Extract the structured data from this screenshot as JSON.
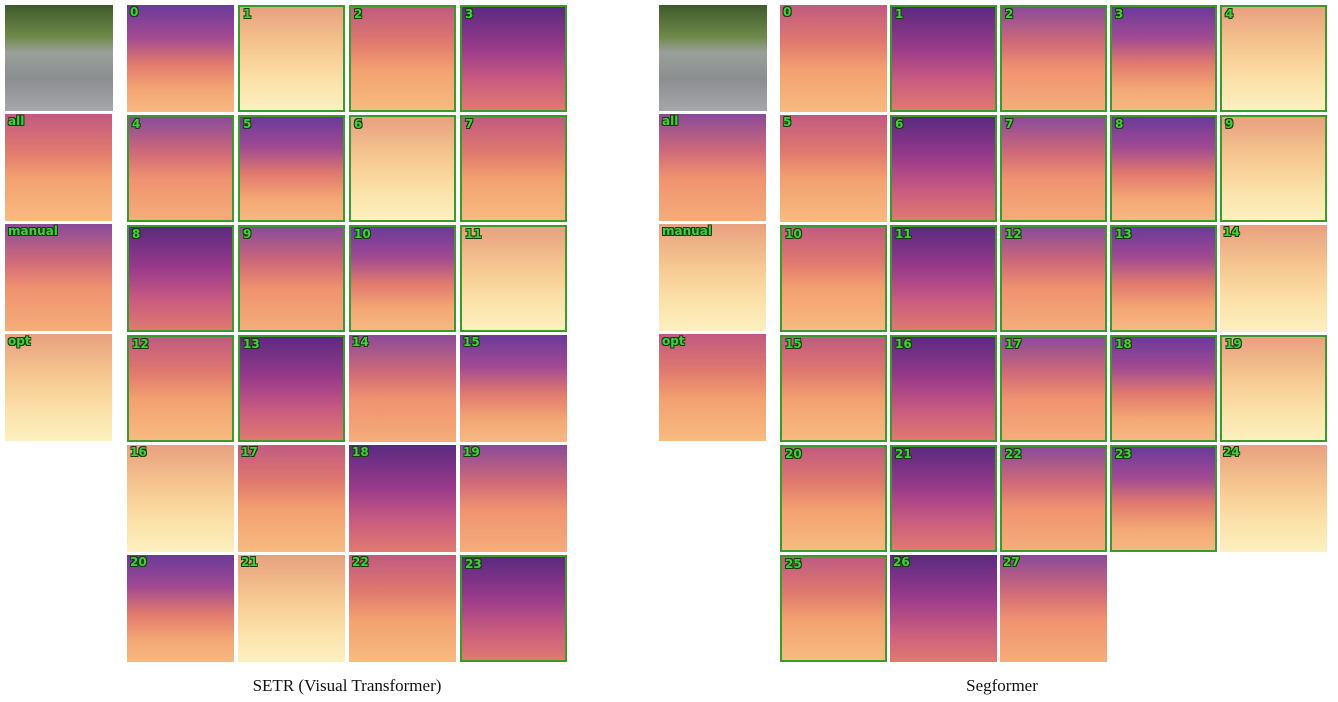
{
  "panels": [
    {
      "caption": "SETR (Visual Transformer)",
      "side_labels": [
        "all",
        "manual",
        "opt"
      ],
      "layers": [
        {
          "label": "0",
          "selected": false
        },
        {
          "label": "1",
          "selected": true
        },
        {
          "label": "2",
          "selected": true
        },
        {
          "label": "3",
          "selected": true
        },
        {
          "label": "4",
          "selected": true
        },
        {
          "label": "5",
          "selected": true
        },
        {
          "label": "6",
          "selected": true
        },
        {
          "label": "7",
          "selected": true
        },
        {
          "label": "8",
          "selected": true
        },
        {
          "label": "9",
          "selected": true
        },
        {
          "label": "10",
          "selected": true
        },
        {
          "label": "11",
          "selected": true
        },
        {
          "label": "12",
          "selected": true
        },
        {
          "label": "13",
          "selected": true
        },
        {
          "label": "14",
          "selected": false
        },
        {
          "label": "15",
          "selected": false
        },
        {
          "label": "16",
          "selected": false
        },
        {
          "label": "17",
          "selected": false
        },
        {
          "label": "18",
          "selected": false
        },
        {
          "label": "19",
          "selected": false
        },
        {
          "label": "20",
          "selected": false
        },
        {
          "label": "21",
          "selected": false
        },
        {
          "label": "22",
          "selected": false
        },
        {
          "label": "23",
          "selected": true
        }
      ]
    },
    {
      "caption": "Segformer",
      "side_labels": [
        "all",
        "manual",
        "opt"
      ],
      "layers": [
        {
          "label": "0",
          "selected": false
        },
        {
          "label": "1",
          "selected": true
        },
        {
          "label": "2",
          "selected": true
        },
        {
          "label": "3",
          "selected": true
        },
        {
          "label": "4",
          "selected": true
        },
        {
          "label": "5",
          "selected": false
        },
        {
          "label": "6",
          "selected": true
        },
        {
          "label": "7",
          "selected": true
        },
        {
          "label": "8",
          "selected": true
        },
        {
          "label": "9",
          "selected": true
        },
        {
          "label": "10",
          "selected": true
        },
        {
          "label": "11",
          "selected": true
        },
        {
          "label": "12",
          "selected": true
        },
        {
          "label": "13",
          "selected": true
        },
        {
          "label": "14",
          "selected": false
        },
        {
          "label": "15",
          "selected": true
        },
        {
          "label": "16",
          "selected": true
        },
        {
          "label": "17",
          "selected": true
        },
        {
          "label": "18",
          "selected": true
        },
        {
          "label": "19",
          "selected": true
        },
        {
          "label": "20",
          "selected": true
        },
        {
          "label": "21",
          "selected": true
        },
        {
          "label": "22",
          "selected": true
        },
        {
          "label": "23",
          "selected": true
        },
        {
          "label": "24",
          "selected": false
        },
        {
          "label": "25",
          "selected": true
        },
        {
          "label": "26",
          "selected": false
        },
        {
          "label": "27",
          "selected": false
        }
      ]
    }
  ]
}
